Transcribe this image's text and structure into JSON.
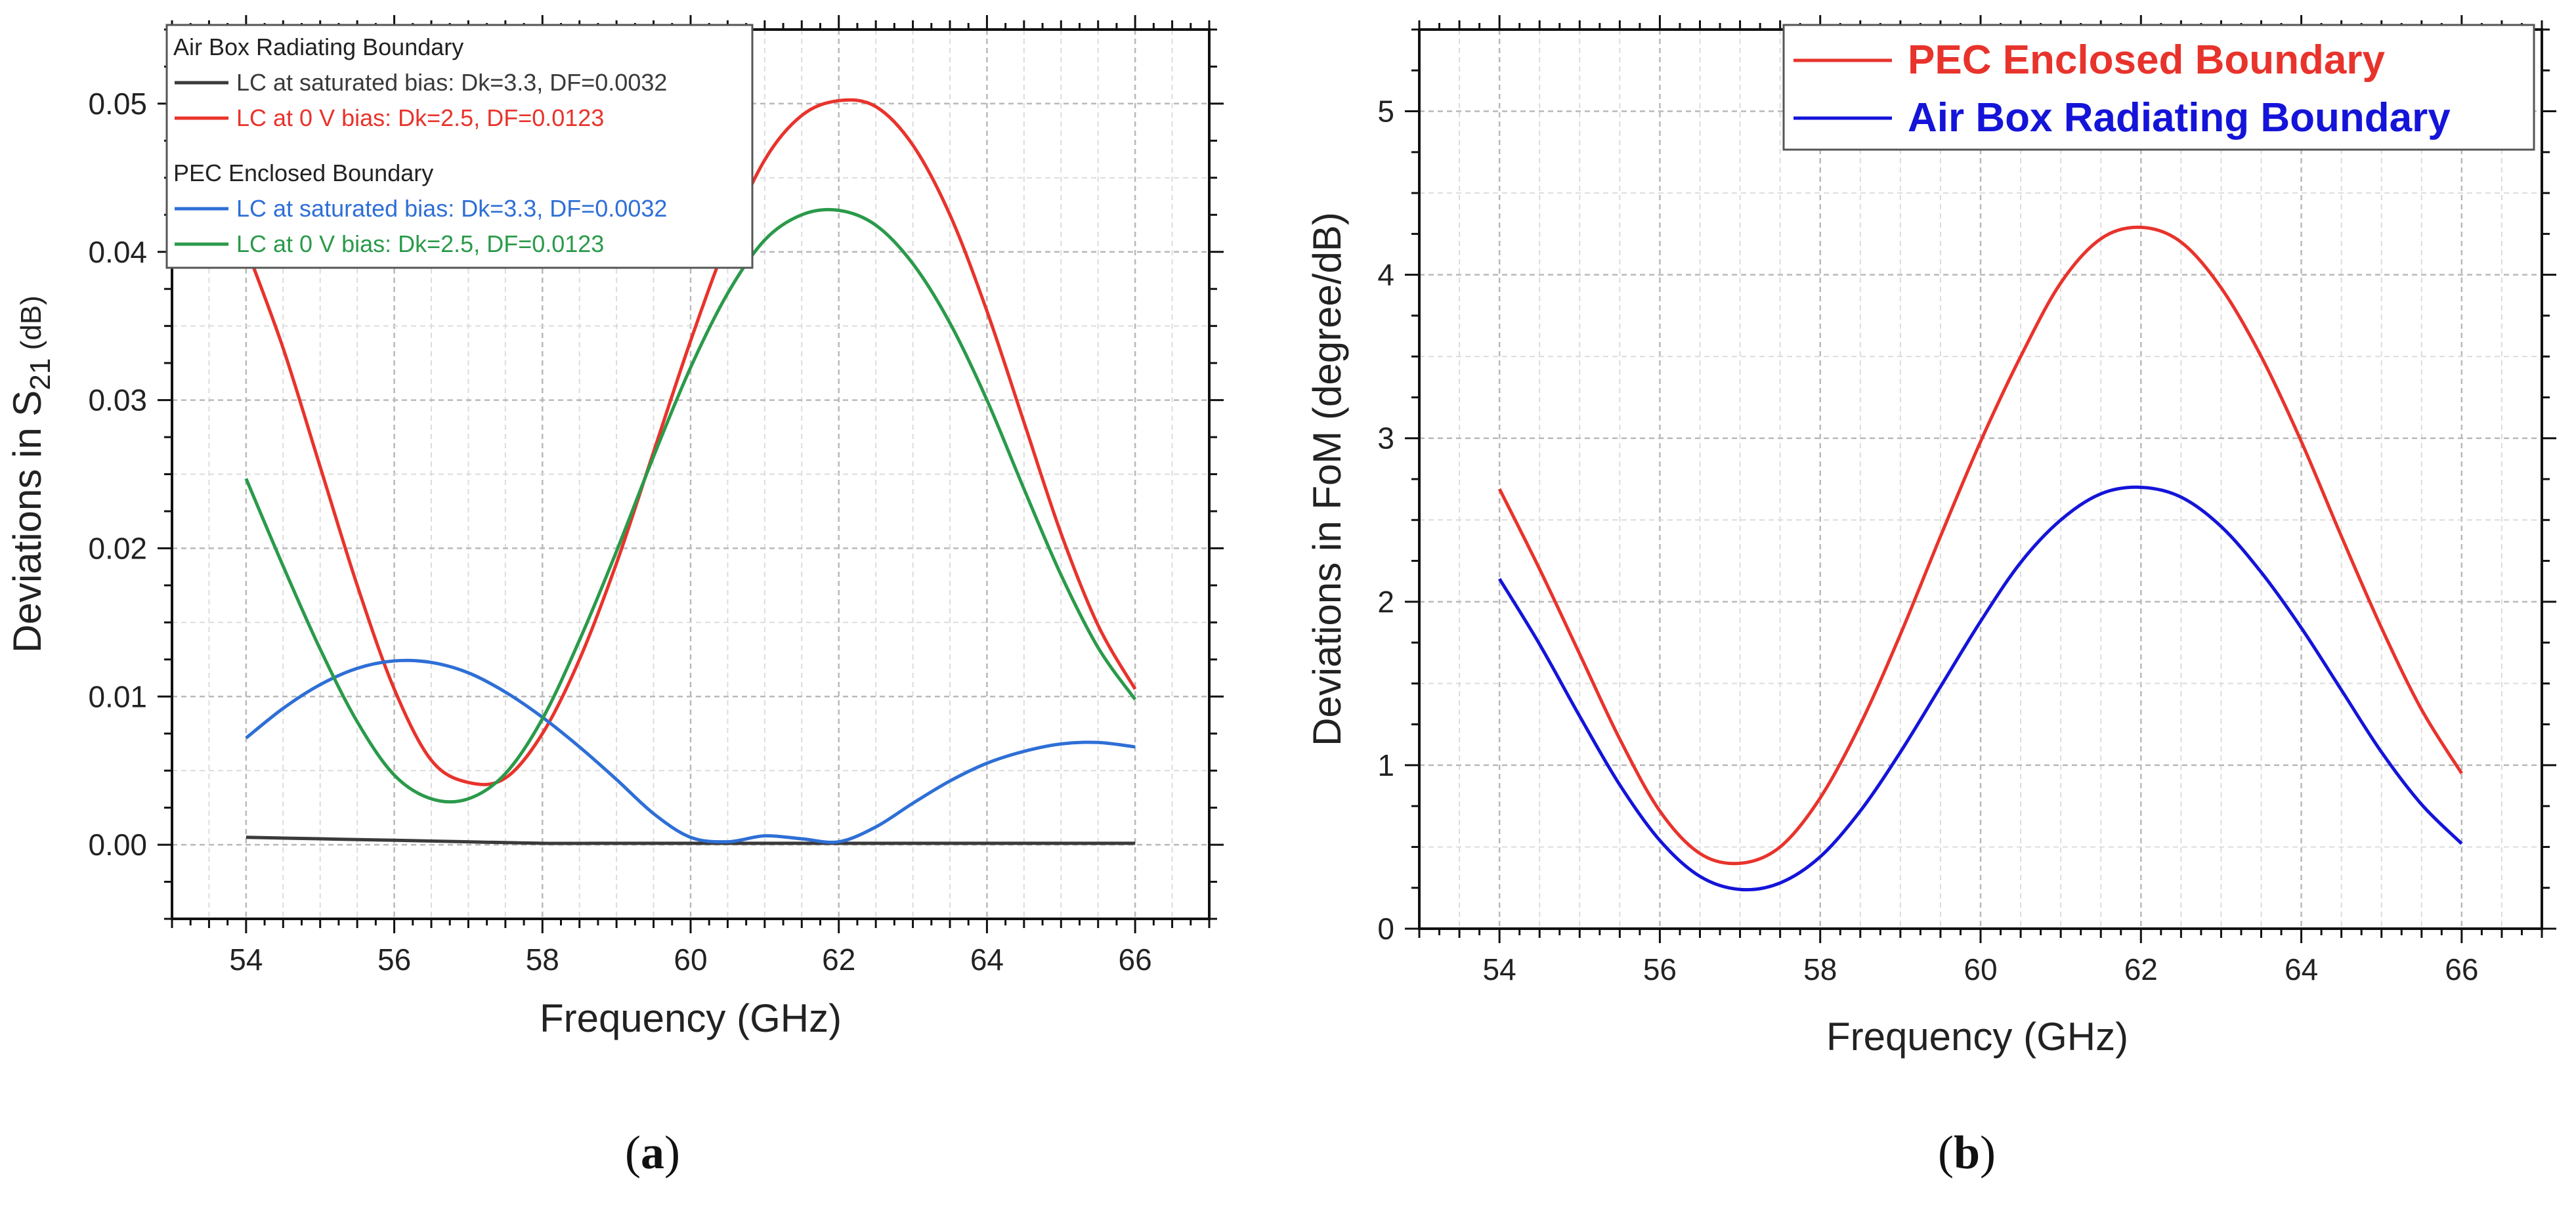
{
  "chart_data": [
    {
      "type": "line",
      "panel_label": "(a)",
      "panel_letter": "a",
      "xlabel": "Frequency (GHz)",
      "ylabel_prefix": "Deviations in S",
      "ylabel_sub": "21",
      "ylabel_suffix": " (dB)",
      "xlim": [
        53,
        67
      ],
      "ylim": [
        -0.005,
        0.055
      ],
      "xticks": [
        54,
        56,
        58,
        60,
        62,
        64,
        66
      ],
      "xtick_labels": [
        "54",
        "56",
        "58",
        "60",
        "62",
        "64",
        "66"
      ],
      "yticks": [
        0,
        0.01,
        0.02,
        0.03,
        0.04,
        0.05
      ],
      "ytick_labels": [
        "0.00",
        "0.01",
        "0.02",
        "0.03",
        "0.04",
        "0.05"
      ],
      "grid": true,
      "legend_position": "top-left",
      "legend_groups": [
        {
          "title": "Air Box Radiating Boundary",
          "series_idx": [
            0,
            1
          ]
        },
        {
          "title": "PEC Enclosed Boundary",
          "series_idx": [
            2,
            3
          ]
        }
      ],
      "series": [
        {
          "name": "LC at saturated bias: Dk=3.3, DF=0.0032",
          "color": "#3a3a3a",
          "x": [
            54,
            55,
            56,
            57,
            58,
            59,
            60,
            61,
            62,
            63,
            64,
            65,
            66
          ],
          "y": [
            0.0005,
            0.0004,
            0.0003,
            0.0002,
            0.0001,
            0.0001,
            0.0001,
            0.0001,
            0.0001,
            0.0001,
            0.0001,
            0.0001,
            0.0001
          ]
        },
        {
          "name": "LC at 0 V bias: Dk=2.5, DF=0.0123",
          "color": "#e8332c",
          "x": [
            54,
            54.5,
            55,
            55.5,
            56,
            56.5,
            57,
            57.5,
            58,
            58.5,
            59,
            59.5,
            60,
            60.5,
            61,
            61.5,
            62,
            62.5,
            63,
            63.5,
            64,
            64.5,
            65,
            65.5,
            66
          ],
          "y": [
            0.0403,
            0.0335,
            0.0255,
            0.0175,
            0.0105,
            0.0057,
            0.0042,
            0.0045,
            0.0075,
            0.0125,
            0.019,
            0.0265,
            0.034,
            0.0408,
            0.0462,
            0.0492,
            0.0502,
            0.0498,
            0.0472,
            0.0425,
            0.036,
            0.0285,
            0.021,
            0.0148,
            0.0105
          ]
        },
        {
          "name": "LC at saturated bias: Dk=3.3, DF=0.0032",
          "color": "#2e6fd6",
          "x": [
            54,
            54.5,
            55,
            55.5,
            56,
            56.5,
            57,
            57.5,
            58,
            58.5,
            59,
            59.5,
            60,
            60.5,
            61,
            61.5,
            62,
            62.5,
            63,
            63.5,
            64,
            64.5,
            65,
            65.5,
            66
          ],
          "y": [
            0.0072,
            0.0092,
            0.0108,
            0.0119,
            0.0124,
            0.0123,
            0.0116,
            0.0103,
            0.0086,
            0.0066,
            0.0044,
            0.0021,
            0.0005,
            0.0002,
            0.0006,
            0.0004,
            0.0002,
            0.0012,
            0.0028,
            0.0043,
            0.0055,
            0.0063,
            0.0068,
            0.0069,
            0.0066
          ]
        },
        {
          "name": "LC at 0 V bias: Dk=2.5, DF=0.0123",
          "color": "#2a9a4a",
          "x": [
            54,
            54.5,
            55,
            55.5,
            56,
            56.5,
            57,
            57.5,
            58,
            58.5,
            59,
            59.5,
            60,
            60.5,
            61,
            61.5,
            62,
            62.5,
            63,
            63.5,
            64,
            64.5,
            65,
            65.5,
            66
          ],
          "y": [
            0.0247,
            0.0188,
            0.0132,
            0.0083,
            0.0047,
            0.0031,
            0.0031,
            0.0048,
            0.0085,
            0.0138,
            0.0198,
            0.0262,
            0.0322,
            0.0372,
            0.0408,
            0.0425,
            0.0428,
            0.0418,
            0.0392,
            0.0352,
            0.03,
            0.024,
            0.0182,
            0.0133,
            0.0098
          ]
        }
      ]
    },
    {
      "type": "line",
      "panel_label": "(b)",
      "panel_letter": "b",
      "xlabel": "Frequency (GHz)",
      "ylabel": "Deviations in FoM (degree/dB)",
      "xlim": [
        53,
        67
      ],
      "ylim": [
        0,
        5.5
      ],
      "xticks": [
        54,
        56,
        58,
        60,
        62,
        64,
        66
      ],
      "xtick_labels": [
        "54",
        "56",
        "58",
        "60",
        "62",
        "64",
        "66"
      ],
      "yticks": [
        0,
        1,
        2,
        3,
        4,
        5
      ],
      "ytick_labels": [
        "0",
        "1",
        "2",
        "3",
        "4",
        "5"
      ],
      "grid": true,
      "legend_position": "top-right",
      "series": [
        {
          "name": "PEC Enclosed Boundary",
          "color": "#e8332c",
          "x": [
            54,
            54.5,
            55,
            55.5,
            56,
            56.5,
            57,
            57.5,
            58,
            58.5,
            59,
            59.5,
            60,
            60.5,
            61,
            61.5,
            62,
            62.5,
            63,
            63.5,
            64,
            64.5,
            65,
            65.5,
            66
          ],
          "y": [
            2.69,
            2.2,
            1.68,
            1.16,
            0.72,
            0.46,
            0.4,
            0.5,
            0.8,
            1.25,
            1.8,
            2.4,
            2.98,
            3.5,
            3.95,
            4.22,
            4.29,
            4.2,
            3.92,
            3.5,
            2.98,
            2.4,
            1.84,
            1.34,
            0.95
          ]
        },
        {
          "name": "Air Box Radiating Boundary",
          "color": "#1414d9",
          "x": [
            54,
            54.5,
            55,
            55.5,
            56,
            56.5,
            57,
            57.5,
            58,
            58.5,
            59,
            59.5,
            60,
            60.5,
            61,
            61.5,
            62,
            62.5,
            63,
            63.5,
            64,
            64.5,
            65,
            65.5,
            66
          ],
          "y": [
            2.14,
            1.74,
            1.3,
            0.88,
            0.54,
            0.32,
            0.24,
            0.28,
            0.44,
            0.72,
            1.08,
            1.48,
            1.88,
            2.24,
            2.5,
            2.66,
            2.7,
            2.64,
            2.46,
            2.18,
            1.84,
            1.46,
            1.08,
            0.76,
            0.52
          ]
        }
      ]
    }
  ]
}
